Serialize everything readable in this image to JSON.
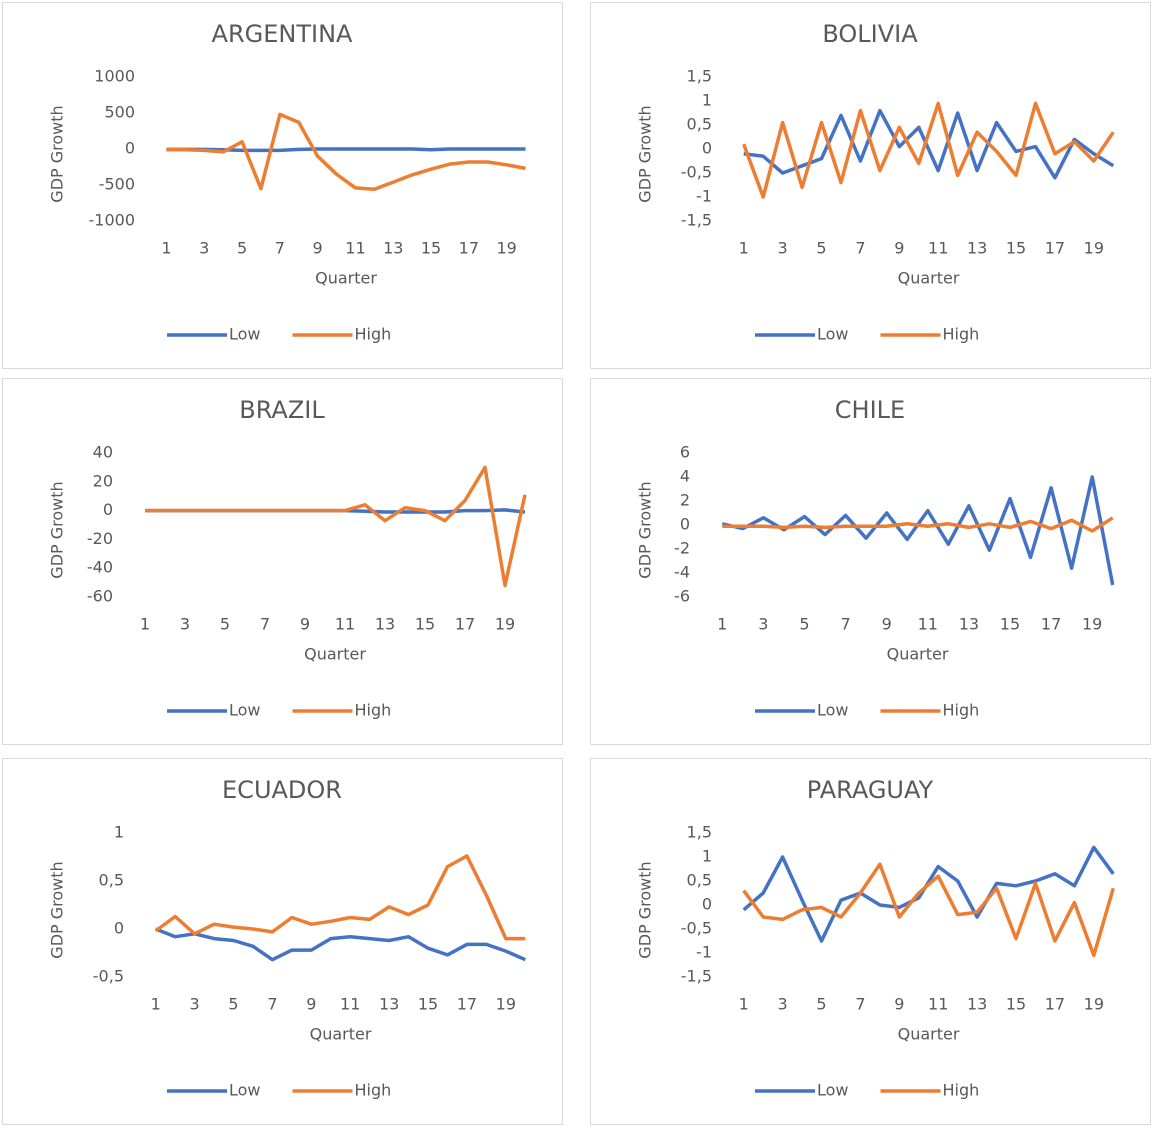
{
  "chart_data": [
    {
      "type": "line",
      "title": "ARGENTINA",
      "x_label": "Quarter",
      "y_label": "GDP Growth",
      "categories": [
        1,
        null,
        3,
        null,
        5,
        null,
        7,
        null,
        9,
        null,
        11,
        null,
        13,
        null,
        15,
        null,
        17,
        null,
        19,
        null
      ],
      "series": [
        {
          "name": "Low",
          "color": "#4472c4",
          "values": [
            -5,
            -5,
            -5,
            -10,
            -20,
            -20,
            -20,
            -5,
            0,
            0,
            0,
            0,
            0,
            0,
            -10,
            0,
            0,
            0,
            0,
            0
          ]
        },
        {
          "name": "High",
          "color": "#ed7d31",
          "values": [
            -10,
            -10,
            -20,
            -40,
            100,
            -550,
            480,
            370,
            -100,
            -350,
            -540,
            -560,
            -460,
            -360,
            -280,
            -210,
            -180,
            -180,
            -220,
            -270
          ]
        }
      ],
      "ylim": [
        -1000,
        1000
      ],
      "yticks": [
        -1000,
        -500,
        0,
        500,
        1000
      ],
      "legend": "bottom"
    },
    {
      "type": "line",
      "title": "BOLIVIA",
      "x_label": "Quarter",
      "y_label": "GDP Growth",
      "categories": [
        1,
        null,
        3,
        null,
        5,
        null,
        7,
        null,
        9,
        null,
        11,
        null,
        13,
        null,
        15,
        null,
        17,
        null,
        19,
        null
      ],
      "series": [
        {
          "name": "Low",
          "color": "#4472c4",
          "values": [
            -0.1,
            -0.15,
            -0.5,
            -0.35,
            -0.2,
            0.7,
            -0.25,
            0.8,
            0.05,
            0.45,
            -0.45,
            0.75,
            -0.45,
            0.55,
            -0.05,
            0.05,
            -0.6,
            0.2,
            -0.1,
            -0.35
          ]
        },
        {
          "name": "High",
          "color": "#ed7d31",
          "values": [
            0.1,
            -1.0,
            0.55,
            -0.8,
            0.55,
            -0.7,
            0.8,
            -0.45,
            0.45,
            -0.3,
            0.95,
            -0.55,
            0.35,
            -0.05,
            -0.55,
            0.95,
            -0.1,
            0.15,
            -0.25,
            0.35
          ]
        }
      ],
      "ylim": [
        -1.5,
        1.5
      ],
      "yticks": [
        {
          "value": -1.5,
          "label": "-1,5"
        },
        -1,
        {
          "value": -0.5,
          "label": "-0,5"
        },
        0,
        {
          "value": 0.5,
          "label": "0,5"
        },
        1,
        {
          "value": 1.5,
          "label": "1,5"
        }
      ],
      "legend": "bottom"
    },
    {
      "type": "line",
      "title": "BRAZIL",
      "x_label": "Quarter",
      "y_label": "GDP Growth",
      "categories": [
        1,
        null,
        3,
        null,
        5,
        null,
        7,
        null,
        9,
        null,
        11,
        null,
        13,
        null,
        15,
        null,
        17,
        null,
        19,
        null
      ],
      "series": [
        {
          "name": "Low",
          "color": "#4472c4",
          "values": [
            0,
            0,
            0,
            0,
            0,
            0,
            0,
            0,
            0,
            0,
            0,
            -0.5,
            -1,
            -1,
            -1,
            -1,
            0,
            0,
            0.5,
            -1
          ]
        },
        {
          "name": "High",
          "color": "#ed7d31",
          "values": [
            0,
            0,
            0,
            0,
            0,
            0,
            0,
            0,
            0,
            0,
            0,
            4,
            -7,
            2,
            0,
            -7,
            7,
            30,
            -52,
            11
          ]
        }
      ],
      "ylim": [
        -60,
        40
      ],
      "yticks": [
        -60,
        -40,
        -20,
        0,
        20,
        40
      ],
      "legend": "bottom"
    },
    {
      "type": "line",
      "title": "CHILE",
      "x_label": "Quarter",
      "y_label": "GDP Growth",
      "categories": [
        1,
        null,
        3,
        null,
        5,
        null,
        7,
        null,
        9,
        null,
        11,
        null,
        13,
        null,
        15,
        null,
        17,
        null,
        19,
        null
      ],
      "series": [
        {
          "name": "Low",
          "color": "#4472c4",
          "values": [
            0.1,
            -0.3,
            0.6,
            -0.4,
            0.7,
            -0.8,
            0.8,
            -1.1,
            1.0,
            -1.2,
            1.2,
            -1.6,
            1.6,
            -2.1,
            2.2,
            -2.7,
            3.1,
            -3.6,
            4.0,
            -5.0
          ]
        },
        {
          "name": "High",
          "color": "#ed7d31",
          "values": [
            -0.1,
            -0.1,
            -0.1,
            -0.2,
            -0.1,
            -0.2,
            -0.1,
            -0.1,
            -0.1,
            0.1,
            -0.1,
            0.1,
            -0.2,
            0.1,
            -0.2,
            0.3,
            -0.3,
            0.4,
            -0.5,
            0.6
          ]
        }
      ],
      "ylim": [
        -6,
        6
      ],
      "yticks": [
        -6,
        -4,
        -2,
        0,
        2,
        4,
        6
      ],
      "legend": "bottom"
    },
    {
      "type": "line",
      "title": "ECUADOR",
      "x_label": "Quarter",
      "y_label": "GDP Growth",
      "categories": [
        1,
        null,
        3,
        null,
        5,
        null,
        7,
        null,
        9,
        null,
        11,
        null,
        13,
        null,
        15,
        null,
        17,
        null,
        19,
        null
      ],
      "series": [
        {
          "name": "Low",
          "color": "#4472c4",
          "values": [
            0,
            -0.08,
            -0.05,
            -0.1,
            -0.12,
            -0.18,
            -0.32,
            -0.22,
            -0.22,
            -0.1,
            -0.08,
            -0.1,
            -0.12,
            -0.08,
            -0.2,
            -0.27,
            -0.16,
            -0.16,
            -0.23,
            -0.32
          ]
        },
        {
          "name": "High",
          "color": "#ed7d31",
          "values": [
            -0.02,
            0.13,
            -0.05,
            0.05,
            0.02,
            0,
            -0.03,
            0.12,
            0.05,
            0.08,
            0.12,
            0.1,
            0.23,
            0.15,
            0.25,
            0.65,
            0.76,
            0.35,
            -0.1,
            -0.1
          ]
        }
      ],
      "ylim": [
        -0.5,
        1
      ],
      "yticks": [
        {
          "value": -0.5,
          "label": "-0,5"
        },
        0,
        {
          "value": 0.5,
          "label": "0,5"
        },
        1
      ],
      "legend": "bottom"
    },
    {
      "type": "line",
      "title": "PARAGUAY",
      "x_label": "Quarter",
      "y_label": "GDP Growth",
      "categories": [
        1,
        null,
        3,
        null,
        5,
        null,
        7,
        null,
        9,
        null,
        11,
        null,
        13,
        null,
        15,
        null,
        17,
        null,
        19,
        null
      ],
      "series": [
        {
          "name": "Low",
          "color": "#4472c4",
          "values": [
            -0.1,
            0.25,
            1.0,
            0.1,
            -0.75,
            0.1,
            0.25,
            0.0,
            -0.05,
            0.15,
            0.8,
            0.5,
            -0.25,
            0.45,
            0.4,
            0.5,
            0.65,
            0.4,
            1.2,
            0.65
          ]
        },
        {
          "name": "High",
          "color": "#ed7d31",
          "values": [
            0.3,
            -0.25,
            -0.3,
            -0.1,
            -0.05,
            -0.25,
            0.25,
            0.85,
            -0.25,
            0.25,
            0.6,
            -0.2,
            -0.15,
            0.35,
            -0.7,
            0.45,
            -0.75,
            0.05,
            -1.05,
            0.35
          ]
        }
      ],
      "ylim": [
        -1.5,
        1.5
      ],
      "yticks": [
        {
          "value": -1.5,
          "label": "-1,5"
        },
        -1,
        {
          "value": -0.5,
          "label": "-0,5"
        },
        0,
        {
          "value": 0.5,
          "label": "0,5"
        },
        1,
        {
          "value": 1.5,
          "label": "1,5"
        }
      ],
      "legend": "bottom"
    }
  ]
}
